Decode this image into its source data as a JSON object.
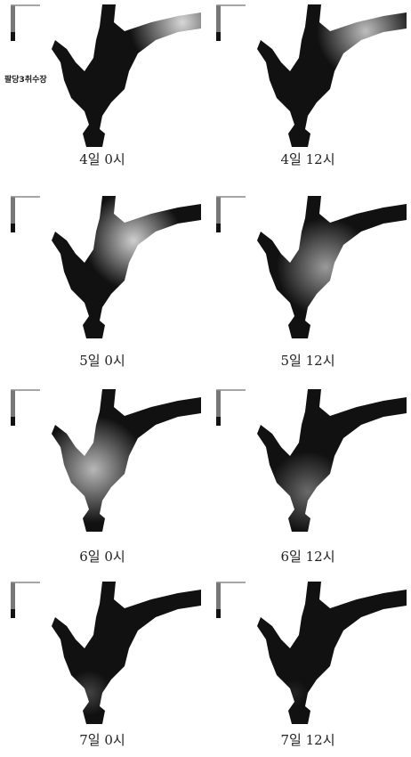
{
  "panels": [
    {
      "caption": "4일 0시",
      "label": "팔당3취수장"
    },
    {
      "caption": "4일 12시"
    },
    {
      "caption": "5일 0시"
    },
    {
      "caption": "5일 12시"
    },
    {
      "caption": "6일 0시"
    },
    {
      "caption": "6일 12시"
    },
    {
      "caption": "7일 0시"
    },
    {
      "caption": "7일 12시"
    }
  ]
}
